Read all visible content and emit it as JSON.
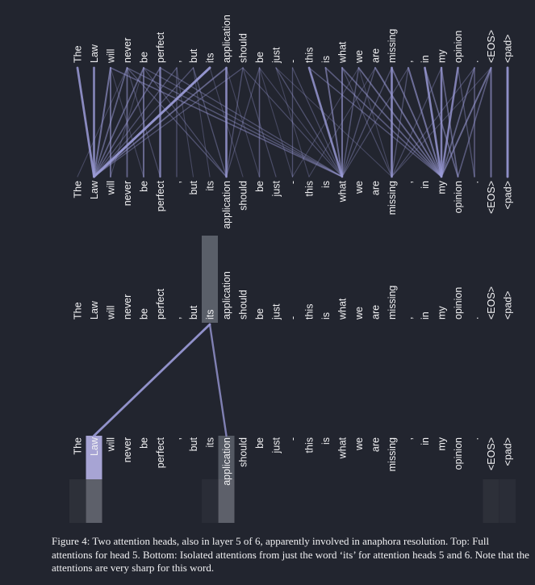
{
  "tokens": [
    "The",
    "Law",
    "will",
    "never",
    "be",
    "perfect",
    ",",
    "but",
    "its",
    "application",
    "should",
    "be",
    "just",
    "-",
    "this",
    "is",
    "what",
    "we",
    "are",
    "missing",
    ",",
    "in",
    "my",
    "opinion",
    ".",
    "<EOS>",
    "<pad>"
  ],
  "colors": {
    "background": "#22252f",
    "line": "#9a9ad6",
    "text": "#f2f2f4",
    "highlight_bar": "#5a5f69",
    "token_highlight": "#a7a4d4"
  },
  "top_panel": {
    "connections": [
      [
        0,
        1,
        0.9
      ],
      [
        1,
        1,
        0.85
      ],
      [
        2,
        1,
        0.6
      ],
      [
        3,
        1,
        0.45
      ],
      [
        4,
        1,
        0.45
      ],
      [
        5,
        1,
        0.4
      ],
      [
        6,
        1,
        0.3
      ],
      [
        7,
        1,
        0.3
      ],
      [
        8,
        1,
        1.0
      ],
      [
        9,
        1,
        0.5
      ],
      [
        10,
        1,
        0.3
      ],
      [
        2,
        2,
        0.55
      ],
      [
        3,
        3,
        0.5
      ],
      [
        4,
        4,
        0.55
      ],
      [
        5,
        5,
        0.75
      ],
      [
        9,
        9,
        0.85
      ],
      [
        19,
        19,
        0.85
      ],
      [
        26,
        26,
        0.95
      ],
      [
        25,
        25,
        0.6
      ],
      [
        24,
        24,
        0.4
      ],
      [
        6,
        6,
        0.3
      ],
      [
        11,
        11,
        0.4
      ],
      [
        13,
        13,
        0.3
      ],
      [
        2,
        16,
        0.4
      ],
      [
        3,
        16,
        0.35
      ],
      [
        4,
        16,
        0.3
      ],
      [
        5,
        16,
        0.3
      ],
      [
        12,
        16,
        0.3
      ],
      [
        13,
        16,
        0.25
      ],
      [
        14,
        16,
        0.85
      ],
      [
        15,
        16,
        0.55
      ],
      [
        16,
        16,
        0.6
      ],
      [
        17,
        16,
        0.35
      ],
      [
        18,
        16,
        0.3
      ],
      [
        3,
        9,
        0.3
      ],
      [
        4,
        9,
        0.25
      ],
      [
        7,
        9,
        0.3
      ],
      [
        10,
        9,
        0.3
      ],
      [
        11,
        9,
        0.25
      ],
      [
        14,
        22,
        0.35
      ],
      [
        15,
        22,
        0.4
      ],
      [
        16,
        22,
        0.45
      ],
      [
        17,
        22,
        0.5
      ],
      [
        18,
        22,
        0.55
      ],
      [
        19,
        22,
        0.5
      ],
      [
        20,
        22,
        0.6
      ],
      [
        21,
        22,
        0.85
      ],
      [
        22,
        22,
        0.8
      ],
      [
        23,
        22,
        0.8
      ],
      [
        24,
        22,
        0.45
      ],
      [
        25,
        22,
        0.55
      ],
      [
        21,
        23,
        0.45
      ],
      [
        22,
        23,
        0.45
      ],
      [
        25,
        23,
        0.4
      ],
      [
        8,
        10,
        0.2
      ],
      [
        9,
        11,
        0.2
      ],
      [
        10,
        12,
        0.25
      ],
      [
        11,
        13,
        0.2
      ],
      [
        12,
        14,
        0.2
      ],
      [
        7,
        8,
        0.2
      ],
      [
        6,
        7,
        0.2
      ],
      [
        12,
        19,
        0.2
      ],
      [
        16,
        19,
        0.25
      ],
      [
        17,
        19,
        0.2
      ],
      [
        2,
        4,
        0.2
      ],
      [
        3,
        5,
        0.25
      ],
      [
        23,
        24,
        0.3
      ],
      [
        3,
        0,
        0.2
      ],
      [
        4,
        2,
        0.2
      ],
      [
        10,
        16,
        0.25
      ],
      [
        11,
        16,
        0.2
      ],
      [
        19,
        16,
        0.3
      ],
      [
        20,
        16,
        0.25
      ],
      [
        20,
        19,
        0.3
      ],
      [
        22,
        19,
        0.25
      ],
      [
        24,
        19,
        0.25
      ],
      [
        25,
        19,
        0.2
      ],
      [
        17,
        13,
        0.2
      ],
      [
        18,
        14,
        0.2
      ]
    ]
  },
  "bottom_panel": {
    "from_token": "its",
    "connections": [
      [
        8,
        1,
        0.9
      ],
      [
        8,
        9,
        0.7
      ]
    ]
  },
  "caption": "Figure 4: Two attention heads, also in layer 5 of 6, apparently involved in anaphora resolution. Top: Full attentions for head 5. Bottom: Isolated attentions from just the word ‘its’ for attention heads 5 and 6. Note that the attentions are very sharp for this word."
}
